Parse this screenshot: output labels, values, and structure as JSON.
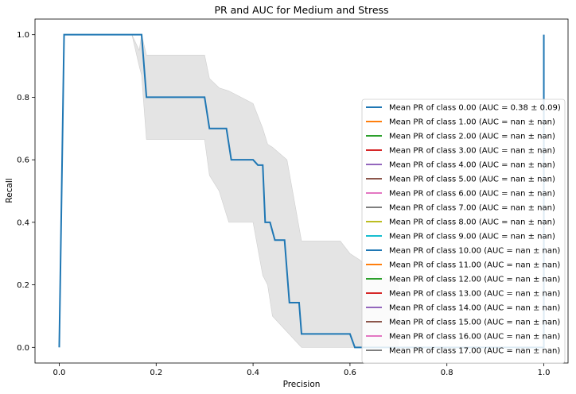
{
  "chart_data": {
    "type": "line",
    "title": "PR and AUC for Medium and Stress",
    "xlabel": "Precision",
    "ylabel": "Recall",
    "xlim": [
      -0.05,
      1.05
    ],
    "ylim": [
      -0.05,
      1.05
    ],
    "xticks": [
      "0.0",
      "0.2",
      "0.4",
      "0.6",
      "0.8",
      "1.0"
    ],
    "yticks": [
      "0.0",
      "0.2",
      "0.4",
      "0.6",
      "0.8",
      "1.0"
    ],
    "grid": false,
    "legend_position": "center-right",
    "series": [
      {
        "name": "Mean PR of class 0.00 (AUC = 0.38 ± 0.09)",
        "color": "#1f77b4",
        "x": [
          0.0,
          0.01,
          0.17,
          0.18,
          0.3,
          0.31,
          0.345,
          0.355,
          0.4,
          0.41,
          0.42,
          0.425,
          0.435,
          0.445,
          0.465,
          0.475,
          0.495,
          0.5,
          0.6,
          0.61,
          1.0,
          1.0
        ],
        "y": [
          0.0,
          1.0,
          1.0,
          0.8,
          0.8,
          0.7,
          0.7,
          0.6,
          0.6,
          0.583,
          0.583,
          0.4,
          0.4,
          0.343,
          0.343,
          0.143,
          0.143,
          0.043,
          0.043,
          0.0,
          0.0,
          1.0
        ],
        "band_x": [
          0.15,
          0.165,
          0.17,
          0.18,
          0.3,
          0.31,
          0.33,
          0.35,
          0.4,
          0.42,
          0.43,
          0.44,
          0.47,
          0.5,
          0.55,
          0.58,
          0.6,
          0.62,
          0.65,
          0.7
        ],
        "band_upper": [
          1.0,
          0.95,
          1.0,
          0.935,
          0.935,
          0.86,
          0.83,
          0.82,
          0.78,
          0.7,
          0.65,
          0.64,
          0.6,
          0.34,
          0.34,
          0.34,
          0.3,
          0.28,
          0.24,
          0.2
        ],
        "band_lower": [
          1.0,
          0.9,
          0.87,
          0.665,
          0.665,
          0.55,
          0.5,
          0.4,
          0.4,
          0.23,
          0.2,
          0.1,
          0.05,
          0.0,
          0.0,
          0.0,
          0.0,
          0.0,
          0.0,
          0.0
        ]
      },
      {
        "name": "Mean PR of class 1.00 (AUC = nan ± nan)",
        "color": "#ff7f0e",
        "x": [],
        "y": []
      },
      {
        "name": "Mean PR of class 2.00 (AUC = nan ± nan)",
        "color": "#2ca02c",
        "x": [],
        "y": []
      },
      {
        "name": "Mean PR of class 3.00 (AUC = nan ± nan)",
        "color": "#d62728",
        "x": [],
        "y": []
      },
      {
        "name": "Mean PR of class 4.00 (AUC = nan ± nan)",
        "color": "#9467bd",
        "x": [],
        "y": []
      },
      {
        "name": "Mean PR of class 5.00 (AUC = nan ± nan)",
        "color": "#8c564b",
        "x": [],
        "y": []
      },
      {
        "name": "Mean PR of class 6.00 (AUC = nan ± nan)",
        "color": "#e377c2",
        "x": [],
        "y": []
      },
      {
        "name": "Mean PR of class 7.00 (AUC = nan ± nan)",
        "color": "#7f7f7f",
        "x": [],
        "y": []
      },
      {
        "name": "Mean PR of class 8.00 (AUC = nan ± nan)",
        "color": "#bcbd22",
        "x": [],
        "y": []
      },
      {
        "name": "Mean PR of class 9.00 (AUC = nan ± nan)",
        "color": "#17becf",
        "x": [],
        "y": []
      },
      {
        "name": "Mean PR of class 10.00 (AUC = nan ± nan)",
        "color": "#1f77b4",
        "x": [],
        "y": []
      },
      {
        "name": "Mean PR of class 11.00 (AUC = nan ± nan)",
        "color": "#ff7f0e",
        "x": [],
        "y": []
      },
      {
        "name": "Mean PR of class 12.00 (AUC = nan ± nan)",
        "color": "#2ca02c",
        "x": [],
        "y": []
      },
      {
        "name": "Mean PR of class 13.00 (AUC = nan ± nan)",
        "color": "#d62728",
        "x": [],
        "y": []
      },
      {
        "name": "Mean PR of class 14.00 (AUC = nan ± nan)",
        "color": "#9467bd",
        "x": [],
        "y": []
      },
      {
        "name": "Mean PR of class 15.00 (AUC = nan ± nan)",
        "color": "#8c564b",
        "x": [],
        "y": []
      },
      {
        "name": "Mean PR of class 16.00 (AUC = nan ± nan)",
        "color": "#e377c2",
        "x": [],
        "y": []
      },
      {
        "name": "Mean PR of class 17.00 (AUC = nan ± nan)",
        "color": "#7f7f7f",
        "x": [],
        "y": []
      }
    ]
  }
}
